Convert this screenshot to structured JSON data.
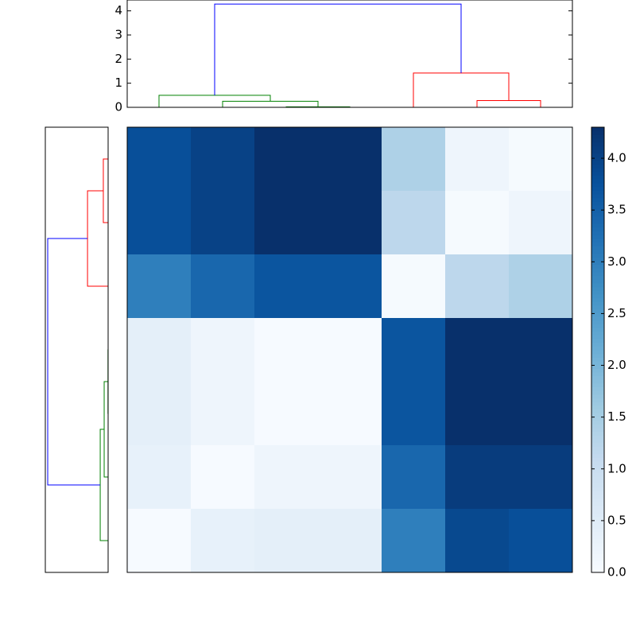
{
  "chart_data": [
    {
      "type": "heatmap",
      "values": [
        [
          3.8,
          4.0,
          4.3,
          4.3,
          1.4,
          0.2,
          0.05
        ],
        [
          3.8,
          4.0,
          4.3,
          4.3,
          1.2,
          0.05,
          0.2
        ],
        [
          3.0,
          3.4,
          3.7,
          3.7,
          0.05,
          1.2,
          1.4
        ],
        [
          0.4,
          0.2,
          0.02,
          0.02,
          3.7,
          4.3,
          4.3
        ],
        [
          0.4,
          0.2,
          0.02,
          0.02,
          3.7,
          4.3,
          4.3
        ],
        [
          0.35,
          0.02,
          0.2,
          0.2,
          3.4,
          4.1,
          4.1
        ],
        [
          0.02,
          0.35,
          0.4,
          0.4,
          3.0,
          3.9,
          3.8
        ]
      ],
      "colormap": [
        "#f7fbff",
        "#deebf7",
        "#c6dbef",
        "#9ecae1",
        "#6baed6",
        "#4292c6",
        "#2171b5",
        "#08519c",
        "#08306b"
      ],
      "clim": [
        0,
        4.3
      ],
      "colorbar_ticks": [
        {
          "value": 0,
          "label": "0.0"
        },
        {
          "value": 0.5,
          "label": "0.5"
        },
        {
          "value": 1,
          "label": "1.0"
        },
        {
          "value": 1.5,
          "label": "1.5"
        },
        {
          "value": 2,
          "label": "2.0"
        },
        {
          "value": 2.5,
          "label": "2.5"
        },
        {
          "value": 3,
          "label": "3.0"
        },
        {
          "value": 3.5,
          "label": "3.5"
        },
        {
          "value": 4,
          "label": "4.0"
        }
      ]
    },
    {
      "type": "dendrogram",
      "orientation": "top",
      "xlim": [
        0,
        7
      ],
      "ylim": [
        0,
        4.45
      ],
      "yticks": [
        0,
        1,
        2,
        3,
        4
      ],
      "links": [
        {
          "color": "#008000",
          "pos": [
            2.5,
            2.5,
            3.5,
            3.5
          ],
          "height": [
            0,
            0.02,
            0.02,
            0
          ]
        },
        {
          "color": "#008000",
          "pos": [
            1.5,
            1.5,
            3,
            3
          ],
          "height": [
            0,
            0.25,
            0.25,
            0.02
          ]
        },
        {
          "color": "#008000",
          "pos": [
            0.5,
            0.5,
            2.25,
            2.25
          ],
          "height": [
            0,
            0.5,
            0.5,
            0.25
          ]
        },
        {
          "color": "#ff0000",
          "pos": [
            5.5,
            5.5,
            6.5,
            6.5
          ],
          "height": [
            0,
            0.28,
            0.28,
            0
          ]
        },
        {
          "color": "#ff0000",
          "pos": [
            4.5,
            4.5,
            6,
            6
          ],
          "height": [
            0,
            1.42,
            1.42,
            0.28
          ]
        },
        {
          "color": "#0000ff",
          "pos": [
            1.375,
            1.375,
            5.25,
            5.25
          ],
          "height": [
            0.5,
            4.28,
            4.28,
            1.42
          ]
        }
      ]
    },
    {
      "type": "dendrogram",
      "orientation": "left",
      "xlim": [
        4.45,
        0
      ],
      "ylim": [
        7,
        0
      ],
      "links": [
        {
          "color": "#ff0000",
          "pos": [
            0.5,
            0.5,
            1.5,
            1.5
          ],
          "height": [
            0,
            0.34,
            0.34,
            0
          ]
        },
        {
          "color": "#ff0000",
          "pos": [
            1,
            1,
            2.5,
            2.5
          ],
          "height": [
            0.34,
            1.46,
            1.46,
            0
          ]
        },
        {
          "color": "#008000",
          "pos": [
            3.5,
            3.5,
            4.5,
            4.5
          ],
          "height": [
            0,
            0.01,
            0.01,
            0
          ]
        },
        {
          "color": "#008000",
          "pos": [
            4,
            4,
            5.5,
            5.5
          ],
          "height": [
            0.01,
            0.28,
            0.28,
            0
          ]
        },
        {
          "color": "#008000",
          "pos": [
            4.75,
            4.75,
            6.5,
            6.5
          ],
          "height": [
            0.28,
            0.56,
            0.56,
            0
          ]
        },
        {
          "color": "#0000ff",
          "pos": [
            1.75,
            1.75,
            5.625,
            5.625
          ],
          "height": [
            1.46,
            4.28,
            4.28,
            0.56
          ]
        }
      ]
    }
  ]
}
